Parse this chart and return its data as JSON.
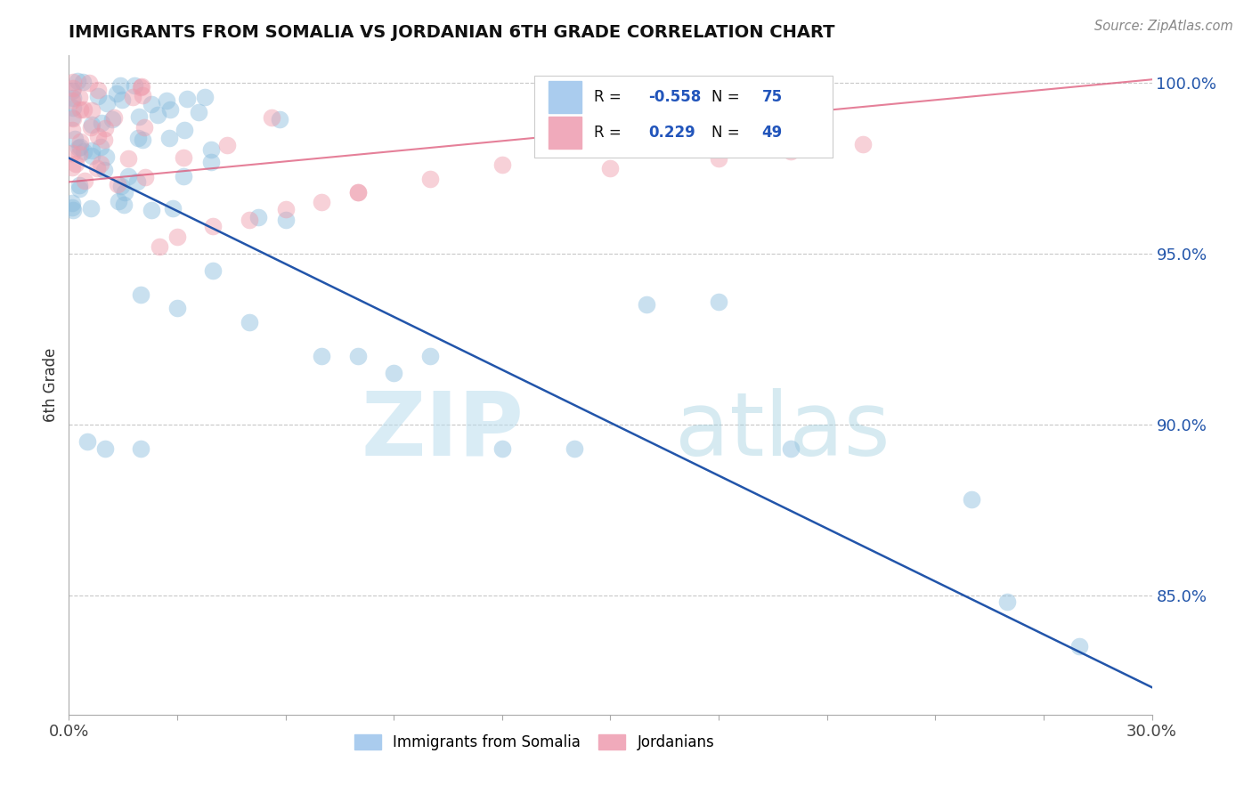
{
  "title": "IMMIGRANTS FROM SOMALIA VS JORDANIAN 6TH GRADE CORRELATION CHART",
  "source_text": "Source: ZipAtlas.com",
  "ylabel": "6th Grade",
  "watermark_zip": "ZIP",
  "watermark_atlas": "atlas",
  "x_min": 0.0,
  "x_max": 0.3,
  "y_min": 0.815,
  "y_max": 1.008,
  "y_ticks": [
    0.85,
    0.9,
    0.95,
    1.0
  ],
  "y_tick_labels": [
    "85.0%",
    "90.0%",
    "95.0%",
    "100.0%"
  ],
  "grid_color": "#c8c8c8",
  "background_color": "#ffffff",
  "blue_color": "#88bbdd",
  "pink_color": "#ee99aa",
  "blue_line_color": "#2255aa",
  "pink_line_color": "#dd5577",
  "legend_R_blue": "-0.558",
  "legend_N_blue": "75",
  "legend_R_pink": "0.229",
  "legend_N_pink": "49",
  "blue_label": "Immigrants from Somalia",
  "pink_label": "Jordanians",
  "blue_line_x": [
    0.0,
    0.3
  ],
  "blue_line_y": [
    0.978,
    0.823
  ],
  "pink_line_x": [
    0.0,
    0.3
  ],
  "pink_line_y": [
    0.971,
    1.001
  ]
}
